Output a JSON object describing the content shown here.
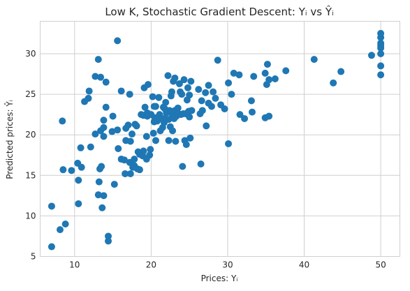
{
  "chart_data": {
    "type": "scatter",
    "title": "Low K, Stochastic Gradient Descent: Yᵢ vs Ŷᵢ",
    "xlabel": "Prices: Yᵢ",
    "ylabel": "Predicted prices: Ŷᵢ",
    "xlim": [
      5.5,
      52.5
    ],
    "ylim": [
      5,
      34
    ],
    "xticks": [
      10,
      20,
      30,
      40,
      50
    ],
    "yticks": [
      5,
      10,
      15,
      20,
      25,
      30
    ],
    "grid": true,
    "marker_color": "#1f77b4",
    "points": [
      [
        7.0,
        6.2
      ],
      [
        7.0,
        11.2
      ],
      [
        8.1,
        8.3
      ],
      [
        8.4,
        21.7
      ],
      [
        8.5,
        15.7
      ],
      [
        8.8,
        9.0
      ],
      [
        9.6,
        15.6
      ],
      [
        10.4,
        16.5
      ],
      [
        10.5,
        11.5
      ],
      [
        10.5,
        14.4
      ],
      [
        10.8,
        18.4
      ],
      [
        10.9,
        16.0
      ],
      [
        11.3,
        24.1
      ],
      [
        11.8,
        24.5
      ],
      [
        11.9,
        25.4
      ],
      [
        12.1,
        18.5
      ],
      [
        12.7,
        20.1
      ],
      [
        12.7,
        27.2
      ],
      [
        13.1,
        29.3
      ],
      [
        13.2,
        14.2
      ],
      [
        13.1,
        12.6
      ],
      [
        13.3,
        15.8
      ],
      [
        13.4,
        20.5
      ],
      [
        13.4,
        27.1
      ],
      [
        13.5,
        16.1
      ],
      [
        13.6,
        11.0
      ],
      [
        13.8,
        12.5
      ],
      [
        13.8,
        21.8
      ],
      [
        13.8,
        19.8
      ],
      [
        13.8,
        20.9
      ],
      [
        14.1,
        26.5
      ],
      [
        14.1,
        23.4
      ],
      [
        14.4,
        6.9
      ],
      [
        14.4,
        7.5
      ],
      [
        14.9,
        20.4
      ],
      [
        15.0,
        22.3
      ],
      [
        15.2,
        13.9
      ],
      [
        15.6,
        20.6
      ],
      [
        15.6,
        31.6
      ],
      [
        15.7,
        18.3
      ],
      [
        16.1,
        25.4
      ],
      [
        16.1,
        17.0
      ],
      [
        16.5,
        16.9
      ],
      [
        16.6,
        15.2
      ],
      [
        16.7,
        19.3
      ],
      [
        16.7,
        20.8
      ],
      [
        17.0,
        21.2
      ],
      [
        17.2,
        16.6
      ],
      [
        17.2,
        25.0
      ],
      [
        17.3,
        19.2
      ],
      [
        17.3,
        15.2
      ],
      [
        17.5,
        20.1
      ],
      [
        17.6,
        16.0
      ],
      [
        17.8,
        16.2
      ],
      [
        17.8,
        17.0
      ],
      [
        17.9,
        21.3
      ],
      [
        18.1,
        21.1
      ],
      [
        18.2,
        15.8
      ],
      [
        18.3,
        17.9
      ],
      [
        18.5,
        17.6
      ],
      [
        18.5,
        15.7
      ],
      [
        18.7,
        22.5
      ],
      [
        18.9,
        17.4
      ],
      [
        19.0,
        18.0
      ],
      [
        19.0,
        22.4
      ],
      [
        19.1,
        25.8
      ],
      [
        19.2,
        23.4
      ],
      [
        19.4,
        17.0
      ],
      [
        19.4,
        19.8
      ],
      [
        19.5,
        22.3
      ],
      [
        19.5,
        22.7
      ],
      [
        19.6,
        26.2
      ],
      [
        19.8,
        17.5
      ],
      [
        19.9,
        18.2
      ],
      [
        20.0,
        22.5
      ],
      [
        20.2,
        24.7
      ],
      [
        20.3,
        20.2
      ],
      [
        20.4,
        21.6
      ],
      [
        20.4,
        23.5
      ],
      [
        20.5,
        22.1
      ],
      [
        20.6,
        23.5
      ],
      [
        20.6,
        19.3
      ],
      [
        20.8,
        21.7
      ],
      [
        21.0,
        24.6
      ],
      [
        21.1,
        22.5
      ],
      [
        21.2,
        20.5
      ],
      [
        21.4,
        22.0
      ],
      [
        21.5,
        20.9
      ],
      [
        21.6,
        23.4
      ],
      [
        21.7,
        22.0
      ],
      [
        21.7,
        21.5
      ],
      [
        21.8,
        23.2
      ],
      [
        21.9,
        24.0
      ],
      [
        22.0,
        22.7
      ],
      [
        22.2,
        27.3
      ],
      [
        22.3,
        21.9
      ],
      [
        22.3,
        19.3
      ],
      [
        22.4,
        23.0
      ],
      [
        22.5,
        21.0
      ],
      [
        22.6,
        24.8
      ],
      [
        22.7,
        25.3
      ],
      [
        22.8,
        20.5
      ],
      [
        22.8,
        22.4
      ],
      [
        22.9,
        26.6
      ],
      [
        23.0,
        22.0
      ],
      [
        23.1,
        23.0
      ],
      [
        23.1,
        27.0
      ],
      [
        23.2,
        19.2
      ],
      [
        23.3,
        22.3
      ],
      [
        23.5,
        23.3
      ],
      [
        23.6,
        22.6
      ],
      [
        23.7,
        26.3
      ],
      [
        23.8,
        25.3
      ],
      [
        23.9,
        22.5
      ],
      [
        24.0,
        25.0
      ],
      [
        24.1,
        16.1
      ],
      [
        24.2,
        22.6
      ],
      [
        24.3,
        26.8
      ],
      [
        24.4,
        19.3
      ],
      [
        24.5,
        22.6
      ],
      [
        24.6,
        18.8
      ],
      [
        24.7,
        24.3
      ],
      [
        24.8,
        25.8
      ],
      [
        24.9,
        22.9
      ],
      [
        25.0,
        24.9
      ],
      [
        25.0,
        22.2
      ],
      [
        25.1,
        19.6
      ],
      [
        25.2,
        26.6
      ],
      [
        25.3,
        23.0
      ],
      [
        26.2,
        25.6
      ],
      [
        26.4,
        22.6
      ],
      [
        26.5,
        16.4
      ],
      [
        26.6,
        24.2
      ],
      [
        26.7,
        23.0
      ],
      [
        27.1,
        25.2
      ],
      [
        27.2,
        21.1
      ],
      [
        27.5,
        26.1
      ],
      [
        27.5,
        23.9
      ],
      [
        27.9,
        23.5
      ],
      [
        28.1,
        25.3
      ],
      [
        28.4,
        24.5
      ],
      [
        28.7,
        29.2
      ],
      [
        29.1,
        23.7
      ],
      [
        29.6,
        23.2
      ],
      [
        30.1,
        18.9
      ],
      [
        30.1,
        26.4
      ],
      [
        30.5,
        25.0
      ],
      [
        30.8,
        27.6
      ],
      [
        31.5,
        27.4
      ],
      [
        31.6,
        22.5
      ],
      [
        32.2,
        22.0
      ],
      [
        33.4,
        27.2
      ],
      [
        33.1,
        24.2
      ],
      [
        33.2,
        22.8
      ],
      [
        34.9,
        22.1
      ],
      [
        34.9,
        27.6
      ],
      [
        35.1,
        26.2
      ],
      [
        35.2,
        28.7
      ],
      [
        35.4,
        22.3
      ],
      [
        35.4,
        26.8
      ],
      [
        36.2,
        26.9
      ],
      [
        37.6,
        27.9
      ],
      [
        41.3,
        29.3
      ],
      [
        43.8,
        26.4
      ],
      [
        44.8,
        27.8
      ],
      [
        48.8,
        29.8
      ],
      [
        50.0,
        32.5
      ],
      [
        50.0,
        32.0
      ],
      [
        50.0,
        31.3
      ],
      [
        50.0,
        31.0
      ],
      [
        50.0,
        30.7
      ],
      [
        50.0,
        30.0
      ],
      [
        50.0,
        28.5
      ],
      [
        50.0,
        27.4
      ]
    ]
  }
}
